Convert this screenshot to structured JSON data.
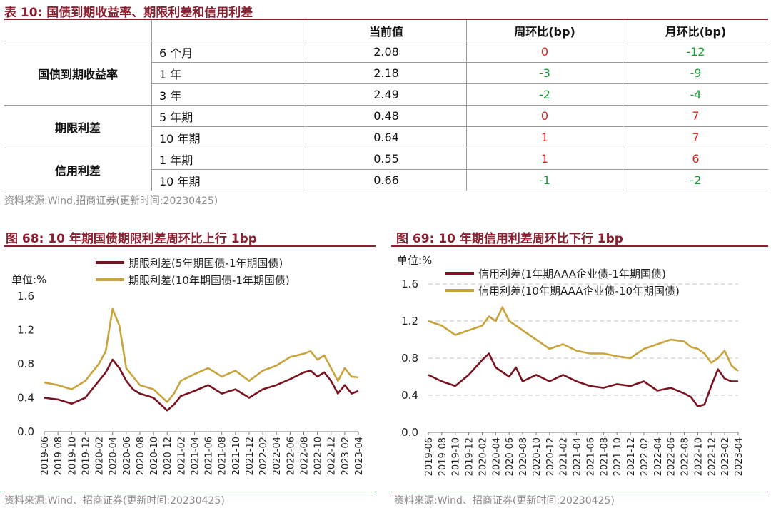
{
  "table": {
    "title": "表 10:  国债到期收益率、期限利差和信用利差",
    "headers": [
      "",
      "",
      "当前值",
      "周环比(bp)",
      "月环比(bp)"
    ],
    "groups": [
      {
        "category": "国债到期收益率",
        "rows": [
          {
            "term": "6 个月",
            "value": "2.08",
            "wow": "0",
            "mom": "-12"
          },
          {
            "term": "1 年",
            "value": "2.18",
            "wow": "-3",
            "mom": "-9"
          },
          {
            "term": "3 年",
            "value": "2.49",
            "wow": "-2",
            "mom": "-4"
          }
        ]
      },
      {
        "category": "期限利差",
        "rows": [
          {
            "term": "5 年期",
            "value": "0.48",
            "wow": "0",
            "mom": "7"
          },
          {
            "term": "10 年期",
            "value": "0.64",
            "wow": "1",
            "mom": "7"
          }
        ]
      },
      {
        "category": "信用利差",
        "rows": [
          {
            "term": "1 年期",
            "value": "0.55",
            "wow": "1",
            "mom": "6"
          },
          {
            "term": "10 年期",
            "value": "0.66",
            "wow": "-1",
            "mom": "-2"
          }
        ]
      }
    ],
    "source": "资料来源:Wind,招商证券(更新时间:20230425)"
  },
  "colors": {
    "accent": "#8b2130",
    "positive": "#e02020",
    "negative": "#18a038",
    "series_dark": "#7a1420",
    "series_gold": "#c9a43c"
  },
  "chart_data": [
    {
      "type": "line",
      "title": "图 68:  10 年期国债期限利差周环比上行 1bp",
      "unit_label": "单位:%",
      "ylim": [
        0,
        1.6
      ],
      "yticks": [
        "0.0",
        "0.4",
        "0.8",
        "1.2",
        "1.6"
      ],
      "xticks": [
        "2019-06",
        "2019-08",
        "2019-10",
        "2019-12",
        "2020-02",
        "2020-04",
        "2020-06",
        "2020-08",
        "2020-10",
        "2020-12",
        "2021-02",
        "2021-04",
        "2021-06",
        "2021-08",
        "2021-10",
        "2021-12",
        "2022-02",
        "2022-04",
        "2022-06",
        "2022-08",
        "2022-10",
        "2022-12",
        "2023-02",
        "2023-04"
      ],
      "grid": false,
      "legend_position": "top",
      "series": [
        {
          "name": "期限利差(5年期国债-1年期国债)",
          "x": [
            "2019-06",
            "2019-08",
            "2019-10",
            "2019-12",
            "2020-02",
            "2020-03",
            "2020-04",
            "2020-05",
            "2020-06",
            "2020-07",
            "2020-08",
            "2020-10",
            "2020-12",
            "2021-01",
            "2021-02",
            "2021-04",
            "2021-06",
            "2021-08",
            "2021-10",
            "2021-12",
            "2022-02",
            "2022-04",
            "2022-06",
            "2022-08",
            "2022-09",
            "2022-10",
            "2022-11",
            "2022-12",
            "2023-01",
            "2023-02",
            "2023-03",
            "2023-04"
          ],
          "values": [
            0.4,
            0.38,
            0.33,
            0.4,
            0.6,
            0.7,
            0.85,
            0.75,
            0.6,
            0.5,
            0.45,
            0.4,
            0.25,
            0.32,
            0.42,
            0.48,
            0.55,
            0.45,
            0.5,
            0.4,
            0.5,
            0.55,
            0.62,
            0.7,
            0.72,
            0.65,
            0.7,
            0.6,
            0.45,
            0.55,
            0.45,
            0.48
          ]
        },
        {
          "name": "期限利差(10年期国债-1年期国债)",
          "x": [
            "2019-06",
            "2019-08",
            "2019-10",
            "2019-12",
            "2020-02",
            "2020-03",
            "2020-04",
            "2020-05",
            "2020-06",
            "2020-07",
            "2020-08",
            "2020-10",
            "2020-12",
            "2021-01",
            "2021-02",
            "2021-04",
            "2021-06",
            "2021-08",
            "2021-10",
            "2021-12",
            "2022-02",
            "2022-04",
            "2022-06",
            "2022-08",
            "2022-09",
            "2022-10",
            "2022-11",
            "2022-12",
            "2023-01",
            "2023-02",
            "2023-03",
            "2023-04"
          ],
          "values": [
            0.58,
            0.55,
            0.5,
            0.6,
            0.8,
            0.95,
            1.45,
            1.25,
            0.75,
            0.65,
            0.55,
            0.5,
            0.35,
            0.45,
            0.6,
            0.68,
            0.75,
            0.65,
            0.72,
            0.6,
            0.72,
            0.78,
            0.88,
            0.92,
            0.95,
            0.85,
            0.9,
            0.75,
            0.6,
            0.75,
            0.65,
            0.64
          ]
        }
      ]
    },
    {
      "type": "line",
      "title": "图 69:  10 年期信用利差周环比下行 1bp",
      "unit_label": "单位:%",
      "ylim": [
        0,
        1.6
      ],
      "yticks": [
        "0.0",
        "0.4",
        "0.8",
        "1.2",
        "1.6"
      ],
      "xticks": [
        "2019-06",
        "2019-08",
        "2019-10",
        "2019-12",
        "2020-02",
        "2020-04",
        "2020-06",
        "2020-08",
        "2020-10",
        "2020-12",
        "2021-02",
        "2021-04",
        "2021-06",
        "2021-08",
        "2021-10",
        "2021-12",
        "2022-02",
        "2022-04",
        "2022-06",
        "2022-08",
        "2022-10",
        "2022-12",
        "2023-02",
        "2023-04"
      ],
      "grid": true,
      "legend_position": "top",
      "series": [
        {
          "name": "信用利差(1年期AAA企业债-1年期国债)",
          "x": [
            "2019-06",
            "2019-08",
            "2019-10",
            "2019-12",
            "2020-02",
            "2020-03",
            "2020-04",
            "2020-05",
            "2020-06",
            "2020-07",
            "2020-08",
            "2020-10",
            "2020-12",
            "2021-02",
            "2021-04",
            "2021-06",
            "2021-08",
            "2021-10",
            "2021-12",
            "2022-02",
            "2022-04",
            "2022-06",
            "2022-08",
            "2022-09",
            "2022-10",
            "2022-11",
            "2022-12",
            "2023-01",
            "2023-02",
            "2023-03",
            "2023-04"
          ],
          "values": [
            0.62,
            0.55,
            0.5,
            0.62,
            0.78,
            0.85,
            0.7,
            0.65,
            0.6,
            0.7,
            0.55,
            0.62,
            0.55,
            0.62,
            0.55,
            0.5,
            0.48,
            0.52,
            0.5,
            0.55,
            0.45,
            0.48,
            0.42,
            0.38,
            0.28,
            0.3,
            0.5,
            0.68,
            0.58,
            0.55,
            0.55
          ]
        },
        {
          "name": "信用利差(10年期AAA企业债-10年期国债)",
          "x": [
            "2019-06",
            "2019-08",
            "2019-10",
            "2019-12",
            "2020-02",
            "2020-03",
            "2020-04",
            "2020-05",
            "2020-06",
            "2020-07",
            "2020-08",
            "2020-10",
            "2020-12",
            "2021-02",
            "2021-04",
            "2021-06",
            "2021-08",
            "2021-10",
            "2021-12",
            "2022-02",
            "2022-04",
            "2022-06",
            "2022-08",
            "2022-09",
            "2022-10",
            "2022-11",
            "2022-12",
            "2023-01",
            "2023-02",
            "2023-03",
            "2023-04"
          ],
          "values": [
            1.2,
            1.15,
            1.05,
            1.1,
            1.15,
            1.25,
            1.2,
            1.35,
            1.2,
            1.15,
            1.1,
            1.0,
            0.9,
            0.95,
            0.88,
            0.85,
            0.85,
            0.82,
            0.8,
            0.9,
            0.95,
            1.0,
            0.98,
            0.92,
            0.9,
            0.85,
            0.75,
            0.8,
            0.88,
            0.72,
            0.66
          ]
        }
      ]
    }
  ],
  "charts_source": "资料来源:Wind、招商证券(更新时间:20230425)"
}
